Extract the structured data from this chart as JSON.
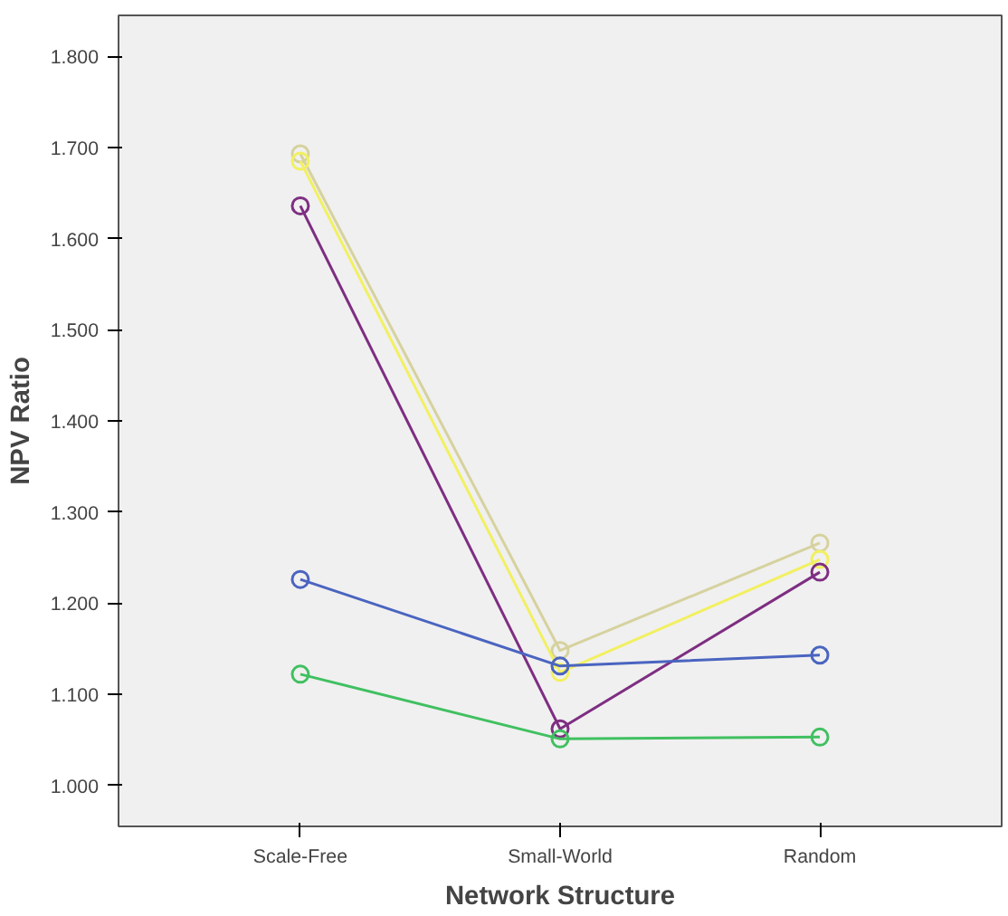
{
  "chart_data": {
    "type": "line",
    "xlabel": "Network Structure",
    "ylabel": "NPV Ratio",
    "categories": [
      "Scale-Free",
      "Small-World",
      "Random"
    ],
    "series": [
      {
        "color": "#d6d29e",
        "values": [
          1.693,
          1.148,
          1.266
        ]
      },
      {
        "color": "#f2f060",
        "values": [
          1.685,
          1.124,
          1.248
        ]
      },
      {
        "color": "#7e2e82",
        "values": [
          1.636,
          1.062,
          1.234
        ]
      },
      {
        "color": "#4a64c0",
        "values": [
          1.226,
          1.131,
          1.143
        ]
      },
      {
        "color": "#40c060",
        "values": [
          1.122,
          1.051,
          1.053
        ]
      }
    ],
    "ylim": [
      0.955,
      1.845
    ],
    "yticks": [
      {
        "value": 1.0,
        "label": "1.000"
      },
      {
        "value": 1.1,
        "label": "1.100"
      },
      {
        "value": 1.2,
        "label": "1.200"
      },
      {
        "value": 1.3,
        "label": "1.300"
      },
      {
        "value": 1.4,
        "label": "1.400"
      },
      {
        "value": 1.5,
        "label": "1.500"
      },
      {
        "value": 1.6,
        "label": "1.600"
      },
      {
        "value": 1.7,
        "label": "1.700"
      },
      {
        "value": 1.8,
        "label": "1.800"
      }
    ],
    "grid": false,
    "marker": "circle",
    "line_style": "solid"
  }
}
